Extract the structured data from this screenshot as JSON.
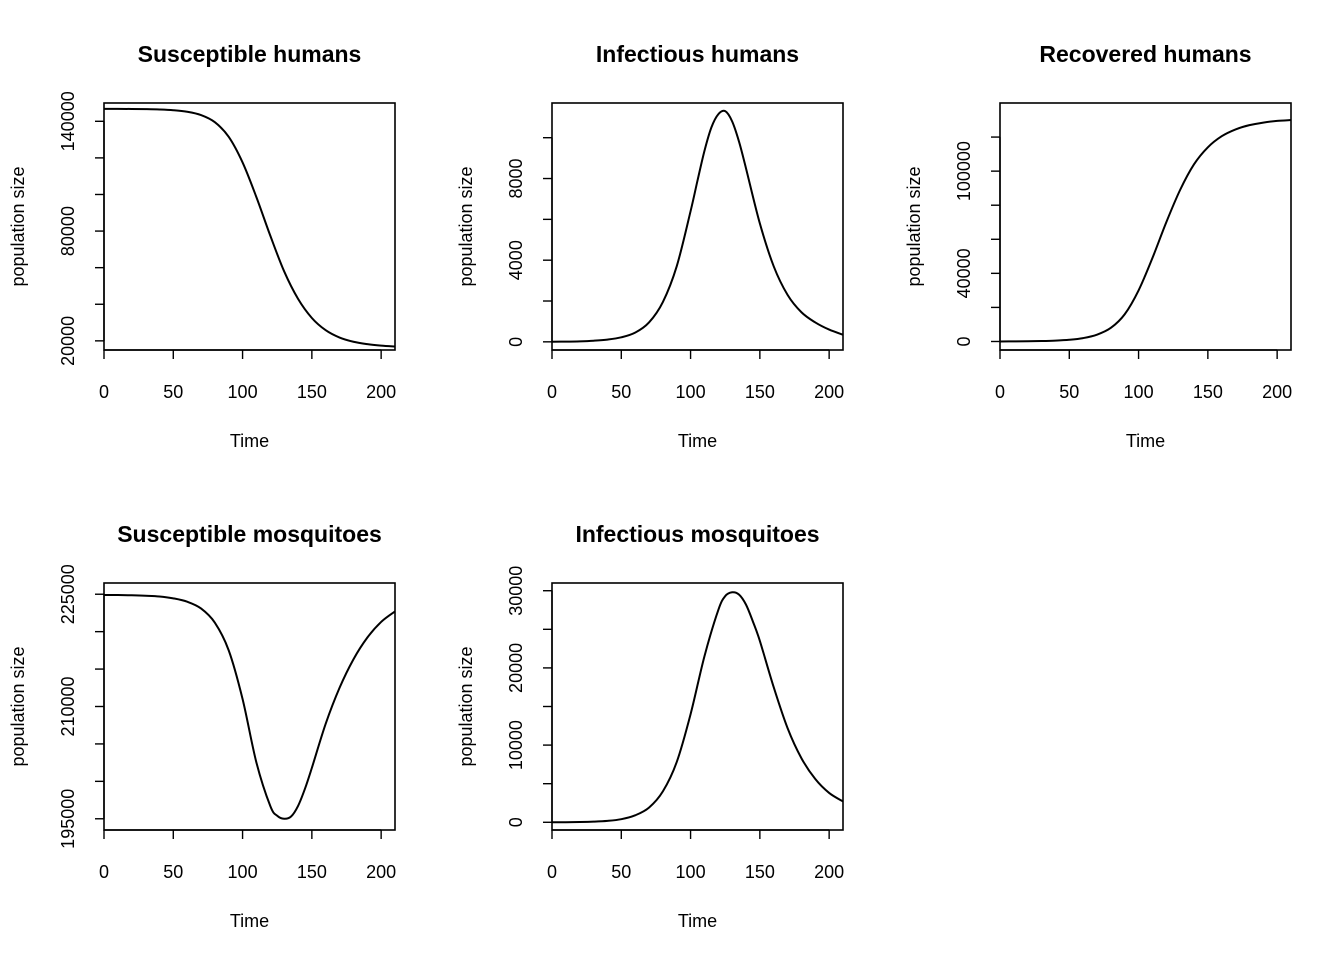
{
  "chart_data": [
    {
      "type": "line",
      "title": "Susceptible humans",
      "xlabel": "Time",
      "ylabel": "population size",
      "xlim": [
        0,
        210
      ],
      "ylim": [
        15000,
        150000
      ],
      "xticks": [
        0,
        50,
        100,
        150,
        200
      ],
      "yticks": [
        20000,
        40000,
        60000,
        80000,
        100000,
        120000,
        140000
      ],
      "ytick_labels": [
        "20000",
        "",
        "",
        "80000",
        "",
        "",
        "140000"
      ],
      "series": [
        {
          "x": [
            0,
            10,
            20,
            30,
            40,
            50,
            60,
            70,
            80,
            90,
            100,
            110,
            120,
            130,
            140,
            150,
            160,
            170,
            180,
            190,
            200,
            210
          ],
          "y": [
            146800,
            146780,
            146740,
            146640,
            146450,
            146050,
            145200,
            143400,
            139500,
            131500,
            117500,
            98500,
            77500,
            58000,
            43000,
            32500,
            25800,
            21800,
            19500,
            18200,
            17400,
            16900
          ]
        }
      ]
    },
    {
      "type": "line",
      "title": "Infectious humans",
      "xlabel": "Time",
      "ylabel": "population size",
      "xlim": [
        0,
        210
      ],
      "ylim": [
        -400,
        11700
      ],
      "xticks": [
        0,
        50,
        100,
        150,
        200
      ],
      "yticks": [
        0,
        2000,
        4000,
        6000,
        8000,
        10000
      ],
      "ytick_labels": [
        "0",
        "",
        "4000",
        "",
        "8000",
        ""
      ],
      "series": [
        {
          "x": [
            0,
            10,
            20,
            30,
            40,
            50,
            60,
            70,
            80,
            90,
            100,
            105,
            110,
            115,
            120,
            125,
            130,
            135,
            140,
            150,
            160,
            170,
            180,
            190,
            200,
            210
          ],
          "y": [
            5,
            10,
            25,
            55,
            110,
            220,
            450,
            950,
            1950,
            3700,
            6400,
            7900,
            9350,
            10500,
            11150,
            11300,
            10800,
            9800,
            8500,
            5800,
            3700,
            2300,
            1450,
            950,
            600,
            350
          ]
        }
      ]
    },
    {
      "type": "line",
      "title": "Recovered humans",
      "xlabel": "Time",
      "ylabel": "population size",
      "xlim": [
        0,
        210
      ],
      "ylim": [
        -5000,
        140000
      ],
      "xticks": [
        0,
        50,
        100,
        150,
        200
      ],
      "yticks": [
        0,
        20000,
        40000,
        60000,
        80000,
        100000,
        120000
      ],
      "ytick_labels": [
        "0",
        "",
        "40000",
        "",
        "",
        "100000",
        ""
      ],
      "series": [
        {
          "x": [
            0,
            10,
            20,
            30,
            40,
            50,
            60,
            70,
            80,
            90,
            100,
            110,
            120,
            130,
            140,
            150,
            160,
            170,
            180,
            190,
            200,
            210
          ],
          "y": [
            0,
            50,
            120,
            250,
            500,
            1000,
            2000,
            4000,
            8000,
            16000,
            30000,
            49000,
            70000,
            89000,
            104000,
            114000,
            120500,
            124500,
            127000,
            128500,
            129500,
            130000
          ]
        }
      ]
    },
    {
      "type": "line",
      "title": "Susceptible mosquitoes",
      "xlabel": "Time",
      "ylabel": "population size",
      "xlim": [
        0,
        210
      ],
      "ylim": [
        193500,
        226500
      ],
      "xticks": [
        0,
        50,
        100,
        150,
        200
      ],
      "yticks": [
        195000,
        200000,
        205000,
        210000,
        215000,
        220000,
        225000
      ],
      "ytick_labels": [
        "195000",
        "",
        "",
        "210000",
        "",
        "",
        "225000"
      ],
      "series": [
        {
          "x": [
            0,
            10,
            20,
            30,
            40,
            50,
            60,
            70,
            80,
            90,
            100,
            110,
            120,
            125,
            130,
            135,
            140,
            145,
            150,
            160,
            170,
            180,
            190,
            200,
            210
          ],
          "y": [
            224900,
            224890,
            224860,
            224800,
            224700,
            224450,
            224000,
            223100,
            221200,
            217500,
            211000,
            202500,
            196700,
            195400,
            195000,
            195300,
            196700,
            199000,
            201800,
            207700,
            212500,
            216300,
            219200,
            221300,
            222700
          ]
        }
      ]
    },
    {
      "type": "line",
      "title": "Infectious mosquitoes",
      "xlabel": "Time",
      "ylabel": "population size",
      "xlim": [
        0,
        210
      ],
      "ylim": [
        -1000,
        31000
      ],
      "xticks": [
        0,
        50,
        100,
        150,
        200
      ],
      "yticks": [
        0,
        5000,
        10000,
        15000,
        20000,
        25000,
        30000
      ],
      "ytick_labels": [
        "0",
        "",
        "10000",
        "",
        "20000",
        "",
        "30000"
      ],
      "series": [
        {
          "x": [
            0,
            10,
            20,
            30,
            40,
            50,
            60,
            70,
            80,
            90,
            100,
            110,
            120,
            125,
            130,
            135,
            140,
            145,
            150,
            160,
            170,
            180,
            190,
            200,
            210
          ],
          "y": [
            0,
            10,
            30,
            80,
            180,
            400,
            900,
            1900,
            4000,
            7800,
            14000,
            21500,
            27500,
            29300,
            29800,
            29500,
            28200,
            26000,
            23500,
            17500,
            12200,
            8300,
            5600,
            3800,
            2700
          ]
        }
      ]
    }
  ]
}
